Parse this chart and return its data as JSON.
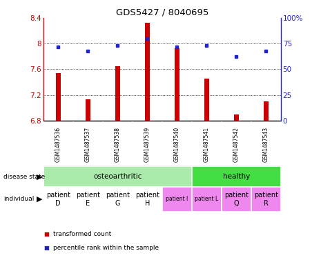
{
  "title": "GDS5427 / 8040695",
  "samples": [
    "GSM1487536",
    "GSM1487537",
    "GSM1487538",
    "GSM1487539",
    "GSM1487540",
    "GSM1487541",
    "GSM1487542",
    "GSM1487543"
  ],
  "transformed_count": [
    7.54,
    7.13,
    7.65,
    8.32,
    7.93,
    7.46,
    6.9,
    7.1
  ],
  "percentile_rank": [
    72,
    68,
    73,
    80,
    72,
    73,
    62,
    68
  ],
  "ylim": [
    6.8,
    8.4
  ],
  "yticks_left": [
    6.8,
    7.2,
    7.6,
    8.0,
    8.4
  ],
  "ytick_labels_left": [
    "6.8",
    "7.2",
    "7.6",
    "8",
    "8.4"
  ],
  "right_yticks": [
    0,
    25,
    50,
    75,
    100
  ],
  "right_ylabels": [
    "0",
    "25",
    "50",
    "75",
    "100%"
  ],
  "right_ylim": [
    0,
    100
  ],
  "bar_color": "#cc0000",
  "dot_color": "#2222cc",
  "disease_state_groups": [
    {
      "label": "osteoarthritic",
      "start": 0,
      "end": 4,
      "color": "#aaeaaa"
    },
    {
      "label": "healthy",
      "start": 5,
      "end": 7,
      "color": "#44dd44"
    }
  ],
  "individual_labels": [
    "patient\nD",
    "patient\nE",
    "patient\nG",
    "patient\nH",
    "patient I",
    "patient L",
    "patient\nQ",
    "patient\nR"
  ],
  "individual_colors": [
    "#ffffff",
    "#ffffff",
    "#ffffff",
    "#ffffff",
    "#ee88ee",
    "#ee88ee",
    "#ee88ee",
    "#ee88ee"
  ],
  "individual_fontsize": [
    7,
    7,
    7,
    7,
    5.5,
    5.5,
    7,
    7
  ],
  "bar_bottom": 6.8,
  "bar_width": 0.15,
  "bg_color": "#ffffff",
  "sample_bg": "#cccccc",
  "sample_border": "#888888"
}
